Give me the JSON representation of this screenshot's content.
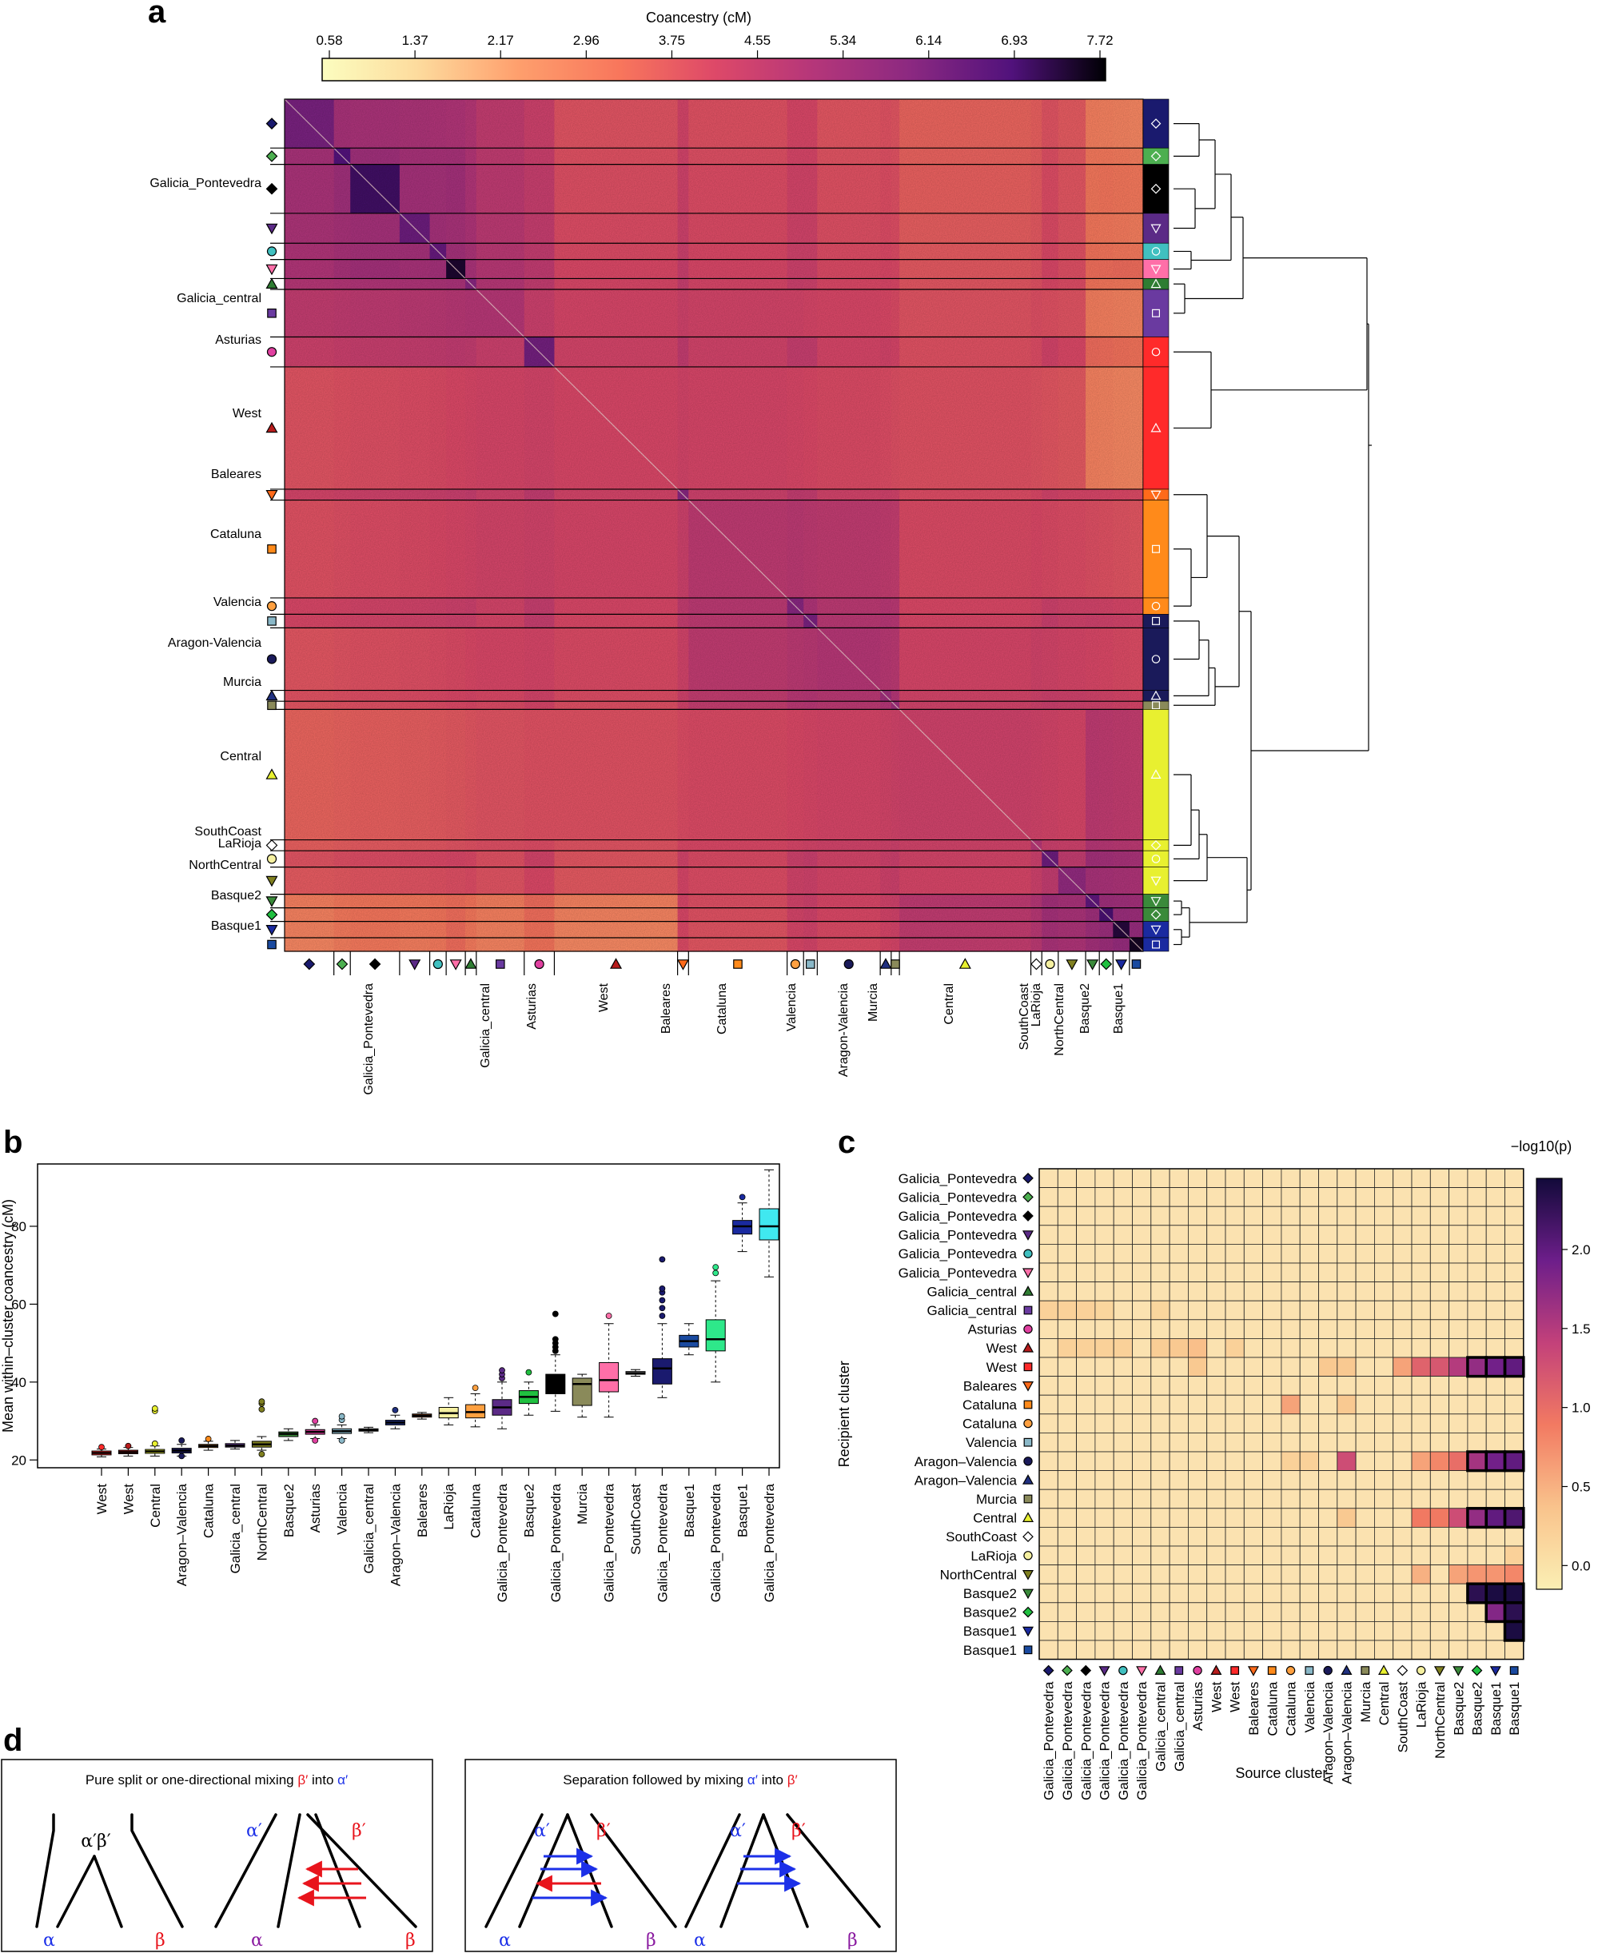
{
  "panels": {
    "a": "a",
    "b": "b",
    "c": "c",
    "d": "d"
  },
  "colors": {
    "Galicia_Pontevedra_1": "#1a1a6e",
    "Galicia_Pontevedra_2": "#4caf50",
    "Galicia_Pontevedra_3": "#000000",
    "Galicia_Pontevedra_4": "#5b2a86",
    "Galicia_Pontevedra_5": "#40c0c0",
    "Galicia_Pontevedra_6": "#ff6fa8",
    "Galicia_central_1": "#2e7d32",
    "Galicia_central_2": "#6a3aa0",
    "Asturias": "#e040a0",
    "West_1": "#b71c1c",
    "West_2": "#ff2a2a",
    "Baleares": "#ff6a1a",
    "Cataluna_1": "#ff8a1a",
    "Cataluna_2": "#ffa040",
    "Valencia": "#8ab8c8",
    "Aragon_Valencia_1": "#1a1a5a",
    "Aragon_Valencia_2": "#203080",
    "Murcia": "#8a8a5a",
    "Central": "#e8f030",
    "SouthCoast": "#ffffff",
    "LaRioja": "#f5f0a0",
    "NorthCentral": "#808020",
    "Basque2_1": "#3a8a3a",
    "Basque2_2": "#20a040",
    "Basque1_1": "#1a2aa0",
    "Basque1_2": "#1a4aa0"
  },
  "panel_a": {
    "title": "Coancestry (cM)",
    "colorbar_ticks": [
      "0.58",
      "1.37",
      "2.17",
      "2.96",
      "3.75",
      "4.55",
      "5.34",
      "6.14",
      "6.93",
      "7.72"
    ],
    "row_labels": [
      "Galicia_Pontevedra",
      "Galicia_central",
      "Asturias",
      "West",
      "Baleares",
      "Cataluna",
      "Valencia",
      "Aragon-Valencia",
      "Murcia",
      "Central",
      "SouthCoast",
      "LaRioja",
      "NorthCentral",
      "Basque2",
      "Basque1"
    ],
    "col_labels": [
      "Galicia_Pontevedra",
      "Galicia_central",
      "Asturias",
      "West",
      "Baleares",
      "Cataluna",
      "Valencia",
      "Aragon-Valencia",
      "Murcia",
      "Central",
      "SouthCoast",
      "LaRioja",
      "NorthCentral",
      "Basque2",
      "Basque1"
    ]
  },
  "chart_data": [
    {
      "type": "heatmap",
      "title": "Coancestry (cM)",
      "colorbar_range": [
        0.58,
        7.72
      ],
      "clusters": [
        {
          "name": "Galicia_Pontevedra",
          "size": 36,
          "block": 6.2
        },
        {
          "name": "Galicia_Pontevedra",
          "size": 12,
          "block": 6.8
        },
        {
          "name": "Galicia_Pontevedra",
          "size": 36,
          "block": 7.0
        },
        {
          "name": "Galicia_Pontevedra",
          "size": 22,
          "block": 6.4
        },
        {
          "name": "Galicia_Pontevedra",
          "size": 12,
          "block": 6.5
        },
        {
          "name": "Galicia_Pontevedra",
          "size": 14,
          "block": 7.4
        },
        {
          "name": "Galicia_central",
          "size": 8,
          "block": 6.0
        },
        {
          "name": "Galicia_central",
          "size": 35,
          "block": 5.0
        },
        {
          "name": "Asturias",
          "size": 22,
          "block": 6.3
        },
        {
          "name": "West",
          "size": 90,
          "block": 4.2
        },
        {
          "name": "Baleares",
          "size": 8,
          "block": 6.0
        },
        {
          "name": "Cataluna",
          "size": 72,
          "block": 4.8
        },
        {
          "name": "Cataluna",
          "size": 12,
          "block": 6.0
        },
        {
          "name": "Valencia",
          "size": 10,
          "block": 6.2
        },
        {
          "name": "Aragon-Valencia",
          "size": 46,
          "block": 5.0
        },
        {
          "name": "Aragon-Valencia",
          "size": 8,
          "block": 5.5
        },
        {
          "name": "Murcia",
          "size": 6,
          "block": 5.5
        },
        {
          "name": "Central",
          "size": 96,
          "block": 4.4
        },
        {
          "name": "SouthCoast",
          "size": 8,
          "block": 5.0
        },
        {
          "name": "LaRioja",
          "size": 12,
          "block": 6.4
        },
        {
          "name": "NorthCentral",
          "size": 20,
          "block": 5.8
        },
        {
          "name": "Basque2",
          "size": 10,
          "block": 6.6
        },
        {
          "name": "Basque2",
          "size": 10,
          "block": 6.9
        },
        {
          "name": "Basque1",
          "size": 12,
          "block": 7.3
        },
        {
          "name": "Basque1",
          "size": 10,
          "block": 7.5
        }
      ]
    },
    {
      "type": "box",
      "ylabel": "Mean within–cluster coancestry (cM)",
      "yticks": [
        "20",
        "40",
        "60",
        "80"
      ],
      "ylim": [
        18,
        96
      ],
      "boxes": [
        {
          "label": "West",
          "color": "#ff2a2a",
          "lw": 20.8,
          "q1": 21.3,
          "med": 21.8,
          "q3": 22.3,
          "uw": 22.8,
          "out": [
            23.3
          ]
        },
        {
          "label": "West",
          "color": "#b71c1c",
          "lw": 21.0,
          "q1": 21.6,
          "med": 22.0,
          "q3": 22.5,
          "uw": 23.2,
          "out": [
            23.6
          ]
        },
        {
          "label": "Central",
          "color": "#e8f030",
          "lw": 21.0,
          "q1": 21.7,
          "med": 22.2,
          "q3": 22.7,
          "uw": 23.6,
          "out": [
            24.2,
            32.6,
            33.2
          ]
        },
        {
          "label": "Aragon–Valencia",
          "color": "#1a1a5a",
          "lw": 21.0,
          "q1": 21.8,
          "med": 22.4,
          "q3": 23.0,
          "uw": 24.0,
          "out": [
            21.0,
            25.0
          ]
        },
        {
          "label": "Cataluna",
          "color": "#ff8a1a",
          "lw": 22.5,
          "q1": 23.2,
          "med": 23.6,
          "q3": 24.0,
          "uw": 24.8,
          "out": [
            25.4
          ]
        },
        {
          "label": "Galicia_central",
          "color": "#6a3aa0",
          "lw": 22.8,
          "q1": 23.3,
          "med": 23.7,
          "q3": 24.2,
          "uw": 25.0,
          "out": []
        },
        {
          "label": "NorthCentral",
          "color": "#808020",
          "lw": 22.5,
          "q1": 23.3,
          "med": 24.0,
          "q3": 24.8,
          "uw": 26.0,
          "out": [
            21.5,
            33.0,
            34.5,
            35.0
          ]
        },
        {
          "label": "Basque2",
          "color": "#3a8a3a",
          "lw": 25.0,
          "q1": 26.0,
          "med": 26.7,
          "q3": 27.2,
          "uw": 28.0,
          "out": []
        },
        {
          "label": "Asturias",
          "color": "#e040a0",
          "lw": 25.5,
          "q1": 26.6,
          "med": 27.2,
          "q3": 27.8,
          "uw": 29.0,
          "out": [
            25.0,
            30.0
          ]
        },
        {
          "label": "Valencia",
          "color": "#8ab8c8",
          "lw": 25.5,
          "q1": 26.8,
          "med": 27.4,
          "q3": 28.0,
          "uw": 29.0,
          "out": [
            25.0,
            30.3,
            31.2
          ]
        },
        {
          "label": "Galicia_central",
          "color": "#2e7d32",
          "lw": 27.0,
          "q1": 27.4,
          "med": 27.7,
          "q3": 28.0,
          "uw": 28.4,
          "out": []
        },
        {
          "label": "Aragon–Valencia",
          "color": "#203080",
          "lw": 28.0,
          "q1": 29.0,
          "med": 29.6,
          "q3": 30.2,
          "uw": 31.5,
          "out": [
            32.8
          ]
        },
        {
          "label": "Baleares",
          "color": "#ff6a1a",
          "lw": 30.5,
          "q1": 31.0,
          "med": 31.4,
          "q3": 31.8,
          "uw": 32.2,
          "out": []
        },
        {
          "label": "LaRioja",
          "color": "#f5f0a0",
          "lw": 29.0,
          "q1": 30.8,
          "med": 32.0,
          "q3": 33.5,
          "uw": 36.0,
          "out": []
        },
        {
          "label": "Cataluna",
          "color": "#ffa040",
          "lw": 28.5,
          "q1": 30.8,
          "med": 32.3,
          "q3": 34.2,
          "uw": 37.0,
          "out": [
            38.5
          ]
        },
        {
          "label": "Galicia_Pontevedra",
          "color": "#5b2a86",
          "lw": 28.0,
          "q1": 31.5,
          "med": 33.5,
          "q3": 35.5,
          "uw": 40.0,
          "out": [
            41.0,
            42.0,
            43.0
          ]
        },
        {
          "label": "Basque2",
          "color": "#20c040",
          "lw": 31.5,
          "q1": 34.5,
          "med": 36.2,
          "q3": 37.8,
          "uw": 40.0,
          "out": [
            42.5
          ]
        },
        {
          "label": "Galicia_Pontevedra",
          "color": "#000000",
          "lw": 32.5,
          "q1": 37.0,
          "med": 40.0,
          "q3": 42.0,
          "uw": 47.0,
          "out": [
            48.0,
            49.0,
            50.0,
            51.0,
            57.5
          ]
        },
        {
          "label": "Murcia",
          "color": "#8a8a5a",
          "lw": 31.0,
          "q1": 34.0,
          "med": 39.5,
          "q3": 41.0,
          "uw": 42.0,
          "out": []
        },
        {
          "label": "Galicia_Pontevedra",
          "color": "#ff6fa8",
          "lw": 31.0,
          "q1": 37.5,
          "med": 40.5,
          "q3": 45.0,
          "uw": 55.0,
          "out": [
            57.0
          ]
        },
        {
          "label": "SouthCoast",
          "color": "#ffffff",
          "lw": 41.5,
          "q1": 42.0,
          "med": 42.3,
          "q3": 42.7,
          "uw": 43.2,
          "out": []
        },
        {
          "label": "Galicia_Pontevedra",
          "color": "#1a1a6e",
          "lw": 36.0,
          "q1": 39.5,
          "med": 43.5,
          "q3": 46.0,
          "uw": 55.0,
          "out": [
            57.0,
            59.0,
            61.0,
            63.0,
            64.0,
            71.5
          ]
        },
        {
          "label": "Basque1",
          "color": "#1a4aa0",
          "lw": 47.0,
          "q1": 49.0,
          "med": 50.5,
          "q3": 52.0,
          "uw": 55.0,
          "out": []
        },
        {
          "label": "Galicia_Pontevedra",
          "color": "#2ee88a",
          "lw": 40.0,
          "q1": 48.0,
          "med": 51.0,
          "q3": 56.0,
          "uw": 66.0,
          "out": [
            68.0,
            69.5
          ]
        },
        {
          "label": "Basque1",
          "color": "#1a2aa0",
          "lw": 73.5,
          "q1": 78.0,
          "med": 80.0,
          "q3": 81.5,
          "uw": 86.0,
          "out": [
            87.5
          ]
        },
        {
          "label": "Galicia_Pontevedra",
          "color": "#40e8f0",
          "lw": 67.0,
          "q1": 76.5,
          "med": 80.0,
          "q3": 84.5,
          "uw": 94.5,
          "out": []
        }
      ]
    },
    {
      "type": "heatmap",
      "xlabel": "Source cluster",
      "ylabel": "Recipient cluster",
      "colorbar_title": "−log10(p)",
      "colorbar_ticks": [
        "0.0",
        "0.5",
        "1.0",
        "1.5",
        "2.0"
      ],
      "colorbar_range": [
        -0.15,
        2.45
      ],
      "labels": [
        "Galicia_Pontevedra",
        "Galicia_Pontevedra",
        "Galicia_Pontevedra",
        "Galicia_Pontevedra",
        "Galicia_Pontevedra",
        "Galicia_Pontevedra",
        "Galicia_central",
        "Galicia_central",
        "Asturias",
        "West",
        "West",
        "Baleares",
        "Cataluna",
        "Cataluna",
        "Valencia",
        "Aragon–Valencia",
        "Aragon–Valencia",
        "Murcia",
        "Central",
        "SouthCoast",
        "LaRioja",
        "NorthCentral",
        "Basque2",
        "Basque2",
        "Basque1",
        "Basque1"
      ],
      "cells": [
        [
          7,
          0,
          0.2
        ],
        [
          7,
          1,
          0.2
        ],
        [
          7,
          2,
          0.2
        ],
        [
          7,
          3,
          0.15
        ],
        [
          7,
          6,
          0.15
        ],
        [
          9,
          1,
          0.2
        ],
        [
          9,
          2,
          0.2
        ],
        [
          9,
          3,
          0.2
        ],
        [
          9,
          4,
          0.2
        ],
        [
          9,
          6,
          0.25
        ],
        [
          9,
          7,
          0.3
        ],
        [
          9,
          8,
          0.4
        ],
        [
          9,
          10,
          0.2
        ],
        [
          10,
          8,
          0.3
        ],
        [
          10,
          15,
          0.3
        ],
        [
          10,
          16,
          0.3
        ],
        [
          10,
          19,
          0.6
        ],
        [
          10,
          20,
          1.1
        ],
        [
          10,
          21,
          1.2
        ],
        [
          10,
          22,
          1.5
        ],
        [
          10,
          23,
          1.7
        ],
        [
          10,
          24,
          1.9
        ],
        [
          10,
          25,
          2.0
        ],
        [
          12,
          13,
          0.6
        ],
        [
          12,
          16,
          0.3
        ],
        [
          15,
          13,
          0.2
        ],
        [
          15,
          14,
          0.2
        ],
        [
          15,
          16,
          1.3
        ],
        [
          15,
          20,
          0.6
        ],
        [
          15,
          21,
          0.8
        ],
        [
          15,
          22,
          1.0
        ],
        [
          15,
          23,
          1.6
        ],
        [
          15,
          24,
          1.9
        ],
        [
          15,
          25,
          2.0
        ],
        [
          18,
          16,
          0.3
        ],
        [
          18,
          20,
          0.9
        ],
        [
          18,
          21,
          0.9
        ],
        [
          18,
          22,
          1.3
        ],
        [
          18,
          23,
          1.7
        ],
        [
          18,
          24,
          2.0
        ],
        [
          18,
          25,
          2.1
        ],
        [
          21,
          20,
          0.5
        ],
        [
          21,
          22,
          0.6
        ],
        [
          21,
          23,
          0.7
        ],
        [
          21,
          24,
          0.7
        ],
        [
          21,
          25,
          0.8
        ],
        [
          22,
          23,
          2.3
        ],
        [
          22,
          24,
          2.4
        ],
        [
          22,
          25,
          2.4
        ],
        [
          23,
          24,
          1.8
        ],
        [
          23,
          25,
          2.3
        ],
        [
          24,
          25,
          2.4
        ],
        [
          20,
          25,
          0.2
        ]
      ],
      "highlighted": [
        [
          10,
          23
        ],
        [
          10,
          24
        ],
        [
          10,
          25
        ],
        [
          15,
          23
        ],
        [
          15,
          24
        ],
        [
          15,
          25
        ],
        [
          18,
          23
        ],
        [
          18,
          24
        ],
        [
          18,
          25
        ],
        [
          22,
          23
        ],
        [
          22,
          24
        ],
        [
          22,
          25
        ],
        [
          23,
          24
        ],
        [
          23,
          25
        ],
        [
          24,
          25
        ]
      ]
    }
  ],
  "panel_d": {
    "left_title_parts": [
      "Pure split or one-directional mixing ",
      "β′",
      " into ",
      "α′"
    ],
    "right_title_parts": [
      "Separation followed by mixing ",
      "α′",
      " into ",
      "β′"
    ],
    "ab_label": "α′β′",
    "alpha_prime": "α′",
    "beta_prime": "β′",
    "alpha": "α",
    "beta": "β"
  }
}
